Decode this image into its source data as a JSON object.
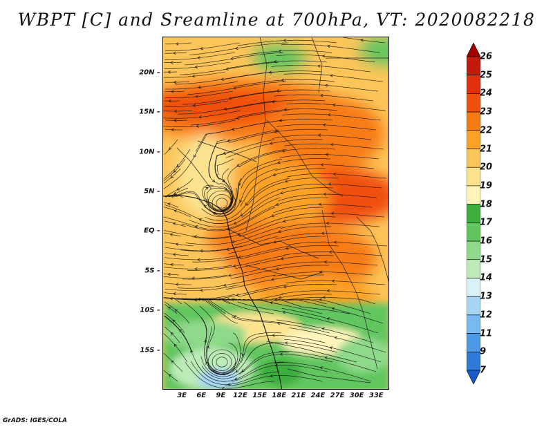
{
  "title": "WBPT [C] and Sreamline at 700hPa, VT: 2020082218",
  "credit": "GrADS: IGES/COLA",
  "map": {
    "latitude_labels": [
      "20N",
      "15N",
      "10N",
      "5N",
      "EQ",
      "5S",
      "10S",
      "15S"
    ],
    "latitude_values": [
      20,
      15,
      10,
      5,
      0,
      -5,
      -10,
      -15
    ],
    "longitude_labels": [
      "3E",
      "6E",
      "9E",
      "12E",
      "15E",
      "18E",
      "21E",
      "24E",
      "27E",
      "30E",
      "33E"
    ],
    "longitude_values": [
      3,
      6,
      9,
      12,
      15,
      18,
      21,
      24,
      27,
      30,
      33
    ],
    "lon_range": [
      0,
      35
    ],
    "lat_range": [
      -20,
      24.5
    ]
  },
  "colorbar": {
    "labels": [
      "26",
      "25",
      "24",
      "23",
      "22",
      "21",
      "20",
      "19",
      "18",
      "17",
      "16",
      "15",
      "14",
      "13",
      "12",
      "11",
      "9",
      "7"
    ],
    "colors": [
      "#a30000",
      "#c41a0b",
      "#e0300e",
      "#f0500f",
      "#f77b14",
      "#fba227",
      "#fcc55a",
      "#fde390",
      "#fff5bb",
      "#3eae3f",
      "#62c660",
      "#8fd98a",
      "#bdebb8",
      "#daf2f7",
      "#a7d6f5",
      "#78b9ef",
      "#4f98e5",
      "#2f79da",
      "#1a5bcc"
    ],
    "colors_order": "top-to-bottom, including the triangular end caps"
  },
  "chart_data": {
    "type": "heatmap",
    "title": "WBPT [C] and Sreamline at 700hPa, VT: 2020082218",
    "variable": "Wet-bulb potential temperature (C) with 700hPa streamlines",
    "x_axis": {
      "ticks": [
        "3E",
        "6E",
        "9E",
        "12E",
        "15E",
        "18E",
        "21E",
        "24E",
        "27E",
        "30E",
        "33E"
      ],
      "range_deg": [
        0,
        35
      ]
    },
    "y_axis": {
      "ticks": [
        "20N",
        "15N",
        "10N",
        "5N",
        "EQ",
        "5S",
        "10S",
        "15S"
      ],
      "range_deg": [
        -20,
        24.5
      ]
    },
    "colorbar_levels": [
      7,
      9,
      11,
      12,
      13,
      14,
      15,
      16,
      17,
      18,
      19,
      20,
      21,
      22,
      23,
      24,
      25,
      26
    ],
    "regional_wbpt_estimates": [
      {
        "area": "north of 20N",
        "approx_value": 20
      },
      {
        "area": "16N band 0E-18E",
        "approx_value": 23
      },
      {
        "area": "10N 3E",
        "approx_value": 19
      },
      {
        "area": "8N 22E-30E",
        "approx_value": 23
      },
      {
        "area": "EQ 10E",
        "approx_value": 21
      },
      {
        "area": "EQ 15E",
        "approx_value": 23
      },
      {
        "area": "5S 5E",
        "approx_value": 20
      },
      {
        "area": "5S 20E",
        "approx_value": 22
      },
      {
        "area": "10S 5E",
        "approx_value": 17
      },
      {
        "area": "15S 8E",
        "approx_value": 15
      },
      {
        "area": "15S 25E",
        "approx_value": 18
      }
    ],
    "streamline_features": [
      {
        "feature": "cyclonic circulation",
        "location": "approx 5N 8E"
      },
      {
        "feature": "cyclonic circulation",
        "location": "approx 16S 9E"
      },
      {
        "feature": "easterly flow",
        "location": "0-10N across 15E-33E"
      }
    ]
  }
}
